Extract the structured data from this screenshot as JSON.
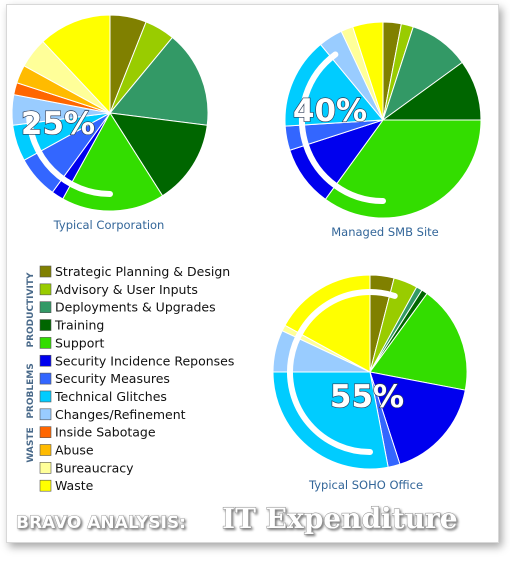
{
  "legend": {
    "items": [
      {
        "label": "Strategic Planning & Design",
        "color": "#808000"
      },
      {
        "label": "Advisory & User Inputs",
        "color": "#99cc00"
      },
      {
        "label": "Deployments & Upgrades",
        "color": "#339966"
      },
      {
        "label": "Training",
        "color": "#006600"
      },
      {
        "label": "Support",
        "color": "#33dd00"
      },
      {
        "label": "Security Incidence Reponses",
        "color": "#0000ee"
      },
      {
        "label": "Security Measures",
        "color": "#3366ff"
      },
      {
        "label": "Technical Glitches",
        "color": "#00ccff"
      },
      {
        "label": "Changes/Refinement",
        "color": "#99ccff"
      },
      {
        "label": "Inside Sabotage",
        "color": "#ff6600"
      },
      {
        "label": "Abuse",
        "color": "#ffbb00"
      },
      {
        "label": "Bureaucracy",
        "color": "#ffff99"
      },
      {
        "label": "Waste",
        "color": "#ffff00"
      }
    ],
    "groups": [
      {
        "label": "PRODUCTIVITY"
      },
      {
        "label": "PROBLEMS"
      },
      {
        "label": "WASTE"
      }
    ]
  },
  "footer": {
    "prefix": "BRAVO ANALYSIS:",
    "title": "IT Expenditure"
  },
  "chart_data": [
    {
      "type": "pie",
      "caption": "Typical Corporation",
      "percent_label": "25%",
      "arc_percent": 25,
      "labels": [
        "Strategic Planning & Design",
        "Advisory & User Inputs",
        "Deployments & Upgrades",
        "Training",
        "Support",
        "Security Incidence Reponses",
        "Security Measures",
        "Technical Glitches",
        "Changes/Refinement",
        "Inside Sabotage",
        "Abuse",
        "Bureaucracy",
        "Waste"
      ],
      "values": [
        6,
        5,
        16,
        14,
        17,
        2,
        7,
        6,
        5,
        2,
        3,
        5,
        12
      ]
    },
    {
      "type": "pie",
      "caption": "Managed SMB Site",
      "percent_label": "40%",
      "arc_percent": 40,
      "labels": [
        "Strategic Planning & Design",
        "Advisory & User Inputs",
        "Deployments & Upgrades",
        "Training",
        "Support",
        "Security Incidence Reponses",
        "Security Measures",
        "Technical Glitches",
        "Changes/Refinement",
        "Inside Sabotage",
        "Abuse",
        "Bureaucracy",
        "Waste"
      ],
      "values": [
        3,
        2,
        10,
        10,
        35,
        10,
        4,
        15,
        4,
        0,
        0,
        2,
        5
      ]
    },
    {
      "type": "pie",
      "caption": "Typical SOHO Office",
      "percent_label": "55%",
      "arc_percent": 55,
      "labels": [
        "Strategic Planning & Design",
        "Advisory & User Inputs",
        "Deployments & Upgrades",
        "Training",
        "Support",
        "Security Incidence Reponses",
        "Security Measures",
        "Technical Glitches",
        "Changes/Refinement",
        "Inside Sabotage",
        "Abuse",
        "Bureaucracy",
        "Waste"
      ],
      "values": [
        4,
        4,
        1,
        1,
        18,
        17,
        2,
        28,
        7,
        0,
        0,
        1,
        17
      ]
    }
  ]
}
